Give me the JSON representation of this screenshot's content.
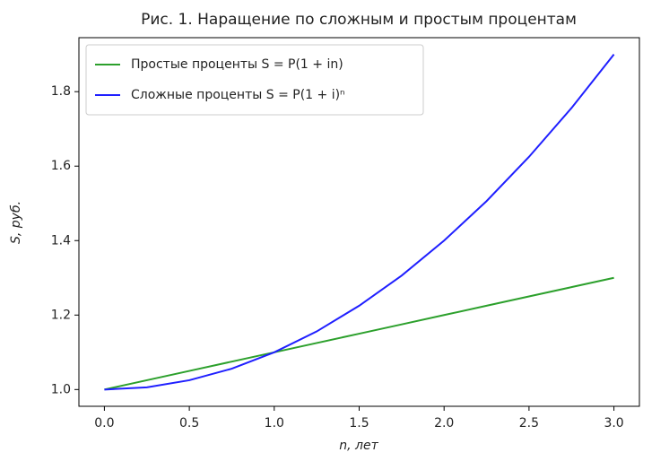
{
  "chart_data": {
    "type": "line",
    "title": "Рис. 1. Наращение по сложным и простым процентам",
    "x_label": "n, лет",
    "y_label": "S, руб.",
    "x": [
      0,
      0.25,
      0.5,
      0.75,
      1,
      1.25,
      1.5,
      1.75,
      2,
      2.25,
      2.5,
      2.75,
      3
    ],
    "series": [
      {
        "name": "Простые проценты S = P(1 + in)",
        "color": "#2ca02c",
        "values": [
          1.0,
          1.025,
          1.05,
          1.075,
          1.1,
          1.125,
          1.15,
          1.175,
          1.2,
          1.225,
          1.25,
          1.275,
          1.3
        ]
      },
      {
        "name": "Сложные проценты S = P(1 + i)ⁿ",
        "color": "#1f1fff",
        "values": [
          1.0,
          1.006,
          1.025,
          1.056,
          1.1,
          1.156,
          1.225,
          1.306,
          1.4,
          1.506,
          1.625,
          1.756,
          1.9
        ]
      }
    ],
    "xlim": [
      -0.15,
      3.15
    ],
    "ylim": [
      0.955,
      1.945
    ],
    "xticks": [
      {
        "value": 0,
        "label": "0.0"
      },
      0.5,
      {
        "value": 1,
        "label": "1.0"
      },
      1.5,
      {
        "value": 2,
        "label": "2.0"
      },
      2.5,
      {
        "value": 3,
        "label": "3.0"
      }
    ],
    "yticks": [
      {
        "value": 1,
        "label": "1.0"
      },
      1.2,
      1.4,
      1.6,
      1.8
    ],
    "legend": "upper left",
    "grid": false
  }
}
